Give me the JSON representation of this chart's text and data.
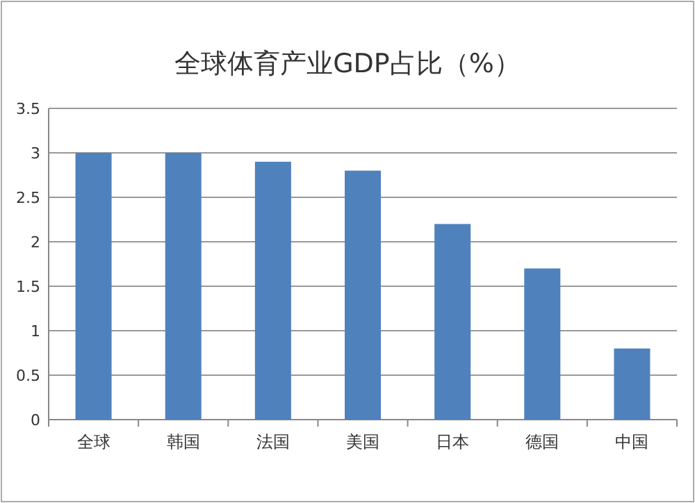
{
  "chart_data": {
    "type": "bar",
    "title": "全球体育产业GDP占比（%）",
    "categories": [
      "全球",
      "韩国",
      "法国",
      "美国",
      "日本",
      "德国",
      "中国"
    ],
    "values": [
      3.0,
      3.0,
      2.9,
      2.8,
      2.2,
      1.7,
      0.8
    ],
    "color": "#4f81bd",
    "ylim": [
      0,
      3.5
    ],
    "yticks": [
      0,
      0.5,
      1,
      1.5,
      2,
      2.5,
      3,
      3.5
    ],
    "grid": "y"
  }
}
